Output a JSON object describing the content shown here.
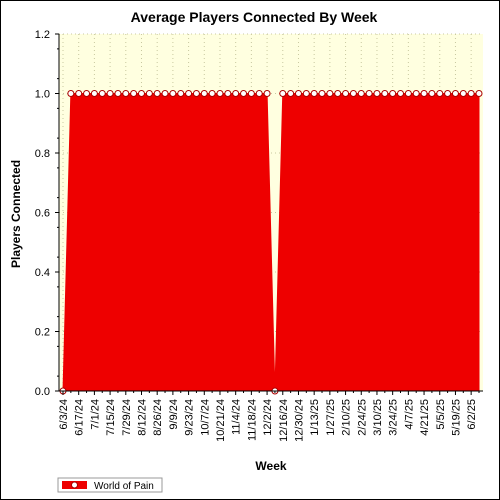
{
  "chart_data": {
    "type": "area",
    "title": "Average Players Connected By Week",
    "xlabel": "Week",
    "ylabel": "Players Connected",
    "ylim": [
      0,
      1.2
    ],
    "yticks": [
      "0.0",
      "0.2",
      "0.4",
      "0.6",
      "0.8",
      "1.0",
      "1.2"
    ],
    "x_tick_labels": [
      "6/3/24",
      "6/17/24",
      "7/1/24",
      "7/15/24",
      "7/29/24",
      "8/12/24",
      "8/26/24",
      "9/9/24",
      "9/23/24",
      "10/7/24",
      "10/21/24",
      "11/4/24",
      "11/18/24",
      "12/2/24",
      "12/16/24",
      "12/30/24",
      "1/13/25",
      "1/27/25",
      "2/10/25",
      "2/24/25",
      "3/10/25",
      "3/24/25",
      "4/7/25",
      "4/21/25",
      "5/5/25",
      "5/19/25",
      "6/2/25"
    ],
    "grid": true,
    "legend_placement": "bottom-left",
    "series": [
      {
        "name": "World of Pain",
        "color": "#ee0000",
        "marker_color": "#ffffff",
        "x": [
          "6/3/24",
          "6/10/24",
          "6/17/24",
          "6/24/24",
          "7/1/24",
          "7/8/24",
          "7/15/24",
          "7/22/24",
          "7/29/24",
          "8/5/24",
          "8/12/24",
          "8/19/24",
          "8/26/24",
          "9/2/24",
          "9/9/24",
          "9/16/24",
          "9/23/24",
          "9/30/24",
          "10/7/24",
          "10/14/24",
          "10/21/24",
          "10/28/24",
          "11/4/24",
          "11/11/24",
          "11/18/24",
          "11/25/24",
          "12/2/24",
          "12/9/24",
          "12/16/24",
          "12/23/24",
          "12/30/24",
          "1/6/25",
          "1/13/25",
          "1/20/25",
          "1/27/25",
          "2/3/25",
          "2/10/25",
          "2/17/25",
          "2/24/25",
          "3/3/25",
          "3/10/25",
          "3/17/25",
          "3/24/25",
          "3/31/25",
          "4/7/25",
          "4/14/25",
          "4/21/25",
          "4/28/25",
          "5/5/25",
          "5/12/25",
          "5/19/25",
          "5/26/25",
          "6/2/25",
          "6/9/25"
        ],
        "values": [
          0,
          1,
          1,
          1,
          1,
          1,
          1,
          1,
          1,
          1,
          1,
          1,
          1,
          1,
          1,
          1,
          1,
          1,
          1,
          1,
          1,
          1,
          1,
          1,
          1,
          1,
          1,
          0,
          1,
          1,
          1,
          1,
          1,
          1,
          1,
          1,
          1,
          1,
          1,
          1,
          1,
          1,
          1,
          1,
          1,
          1,
          1,
          1,
          1,
          1,
          1,
          1,
          1,
          1
        ]
      }
    ]
  }
}
